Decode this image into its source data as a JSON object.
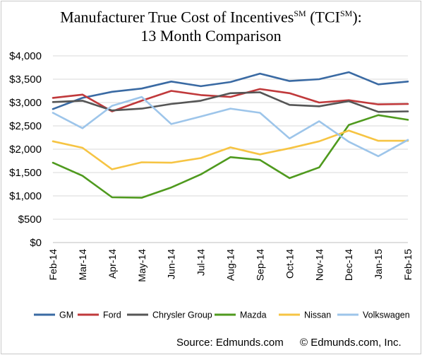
{
  "title": {
    "line1_main": "Manufacturer True Cost of Incentives",
    "line1_sup1": "SM",
    "line1_mid": " (TCI",
    "line1_sup2": "SM",
    "line1_end": "):",
    "line2": "13 Month Comparison"
  },
  "source_text": "Source: Edmunds.com",
  "copyright_text": "© Edmunds.com, Inc.",
  "chart_data": {
    "type": "line",
    "x": [
      "Feb-14",
      "Mar-14",
      "Apr-14",
      "May-14",
      "Jun-14",
      "Jul-14",
      "Aug-14",
      "Sep-14",
      "Oct-14",
      "Nov-14",
      "Dec-14",
      "Jan-15",
      "Feb-15"
    ],
    "ylim": [
      0,
      4000
    ],
    "yticks": [
      0,
      500,
      1000,
      1500,
      2000,
      2500,
      3000,
      3500,
      4000
    ],
    "ytick_labels": [
      "$0",
      "$500",
      "$1,000",
      "$1,500",
      "$2,000",
      "$2,500",
      "$3,000",
      "$3,500",
      "$4,000"
    ],
    "grid": true,
    "legend_position": "bottom",
    "series": [
      {
        "name": "GM",
        "color": "#3a6aa3",
        "values": [
          2860,
          3100,
          3230,
          3300,
          3450,
          3350,
          3440,
          3620,
          3460,
          3500,
          3650,
          3390,
          3450
        ]
      },
      {
        "name": "Ford",
        "color": "#c0393b",
        "values": [
          3100,
          3170,
          2810,
          3040,
          3250,
          3160,
          3120,
          3290,
          3200,
          3000,
          3050,
          2960,
          2970
        ]
      },
      {
        "name": "Chrysler Group",
        "color": "#555555",
        "values": [
          3010,
          3040,
          2830,
          2870,
          2970,
          3040,
          3200,
          3220,
          2950,
          2920,
          3030,
          2800,
          2810
        ]
      },
      {
        "name": "Mazda",
        "color": "#4f9a1e",
        "values": [
          1710,
          1430,
          970,
          960,
          1180,
          1460,
          1830,
          1770,
          1380,
          1610,
          2520,
          2730,
          2630
        ]
      },
      {
        "name": "Nissan",
        "color": "#f6c443",
        "values": [
          2170,
          2030,
          1570,
          1720,
          1710,
          1810,
          2040,
          1890,
          2020,
          2170,
          2400,
          2180,
          2180
        ]
      },
      {
        "name": "Volkswagen",
        "color": "#9dc5ea",
        "values": [
          2780,
          2450,
          2930,
          3120,
          2540,
          2700,
          2870,
          2780,
          2230,
          2600,
          2160,
          1850,
          2200
        ]
      }
    ]
  }
}
